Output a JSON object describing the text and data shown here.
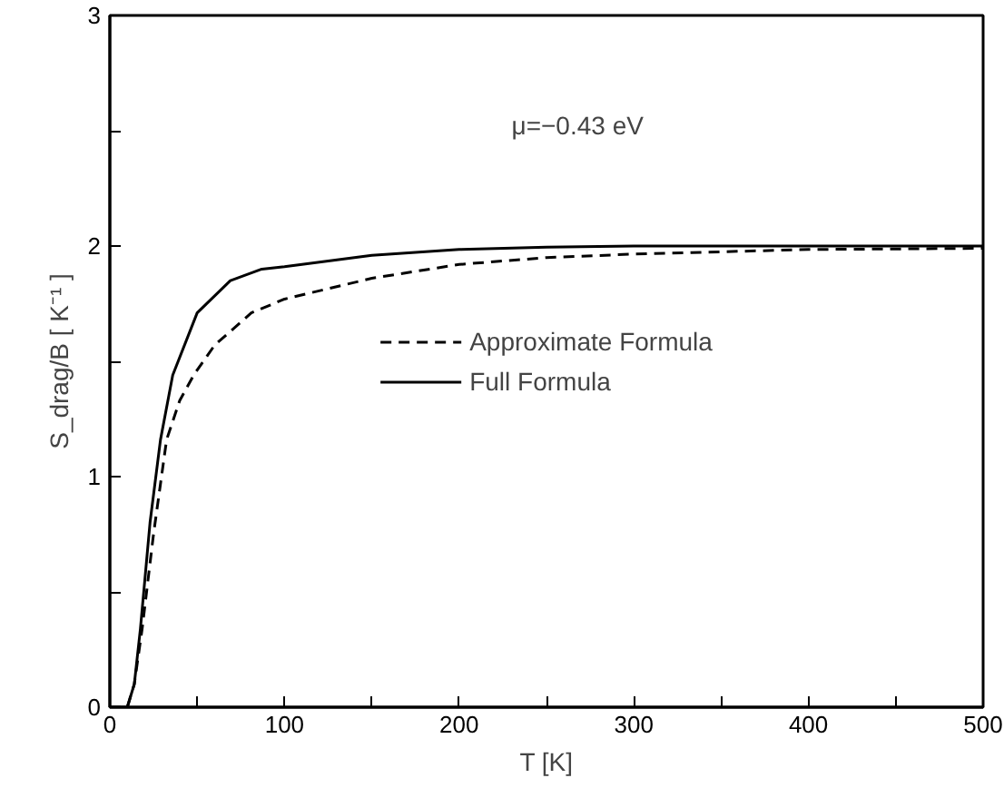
{
  "chart_data": {
    "type": "line",
    "xlabel": "T [K]",
    "ylabel": "S_drag/B [ K⁻¹ ]",
    "annotations": [
      "μ=−0.43 eV"
    ],
    "series": [
      {
        "name": "Approximate Formula",
        "color": "#000000",
        "line_style": "dashed",
        "x": [
          0,
          10,
          14,
          18.5,
          25,
          32.5,
          40,
          48,
          60,
          81,
          100,
          150,
          200,
          250,
          300,
          400,
          500
        ],
        "values": [
          0,
          0,
          0.1,
          0.34,
          0.75,
          1.16,
          1.33,
          1.44,
          1.57,
          1.71,
          1.77,
          1.86,
          1.92,
          1.95,
          1.965,
          1.985,
          1.99
        ]
      },
      {
        "name": "Full Formula",
        "color": "#000000",
        "line_style": "solid",
        "x": [
          0,
          10,
          14,
          17.5,
          23,
          29,
          36,
          50,
          69,
          87,
          100,
          150,
          200,
          250,
          300,
          400,
          500
        ],
        "values": [
          0,
          0,
          0.1,
          0.34,
          0.8,
          1.16,
          1.44,
          1.71,
          1.85,
          1.9,
          1.91,
          1.96,
          1.985,
          1.995,
          2.0,
          2.0,
          2.0
        ]
      }
    ],
    "xlim": [
      0,
      500
    ],
    "ylim": [
      0,
      3
    ],
    "xticks": [
      0,
      {
        "value": 50,
        "label": null
      },
      100,
      {
        "value": 150,
        "label": null
      },
      200,
      {
        "value": 250,
        "label": null
      },
      300,
      {
        "value": 350,
        "label": null
      },
      400,
      {
        "value": 450,
        "label": null
      },
      500
    ],
    "yticks": [
      0,
      {
        "value": 0.5,
        "label": null
      },
      1,
      {
        "value": 1.5,
        "label": null
      },
      2,
      {
        "value": 2.5,
        "label": null
      },
      3
    ],
    "grid": false,
    "legend": "center",
    "marker": "none"
  }
}
